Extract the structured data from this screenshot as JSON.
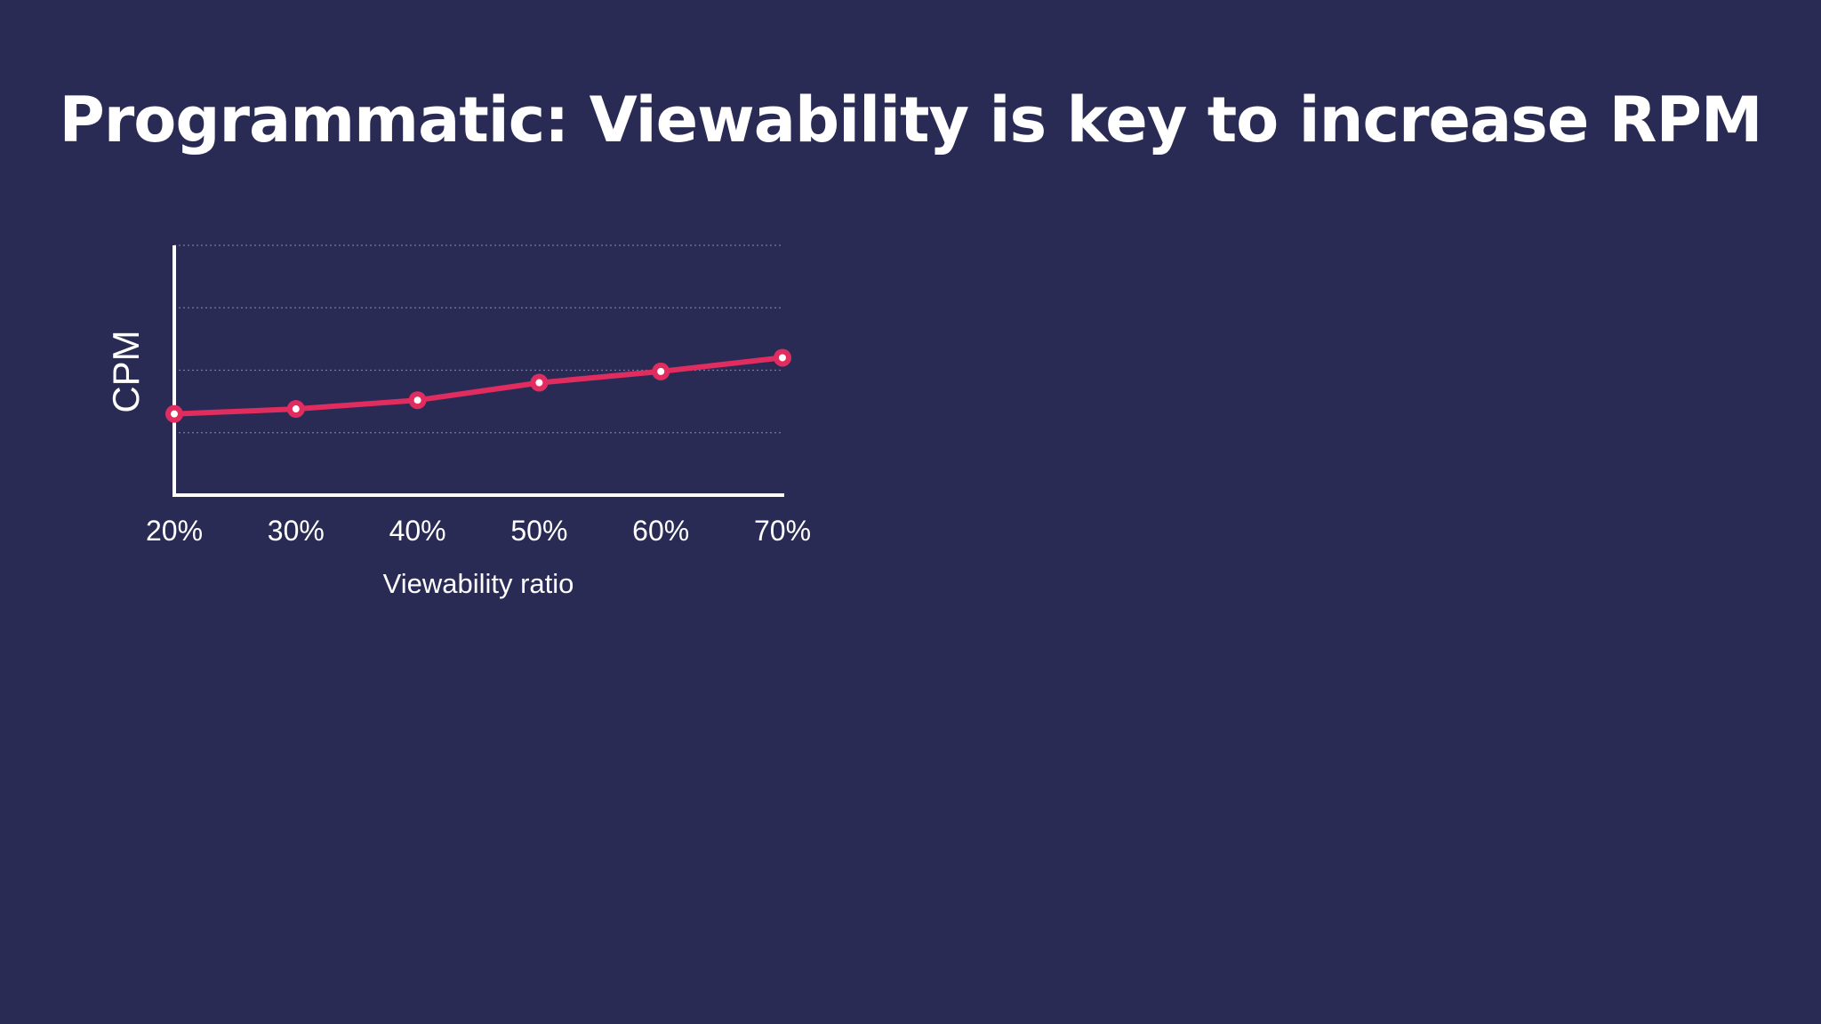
{
  "title": "Programmatic: Viewability is key to increase RPM",
  "colors": {
    "background": "#292b55",
    "line": "#e02c5e",
    "axis": "#ffffff",
    "grid": "#8a8db0",
    "text": "#ffffff"
  },
  "chart_data": {
    "type": "line",
    "categories": [
      "20%",
      "30%",
      "40%",
      "50%",
      "60%",
      "70%"
    ],
    "series": [
      {
        "values": [
          1.3,
          1.38,
          1.52,
          1.8,
          1.98,
          2.2
        ]
      }
    ],
    "xlabel": "Viewability ratio",
    "ylabel": "CPM",
    "ylim": [
      0,
      4
    ],
    "y_ticks_labeled": false,
    "grid": true,
    "legend": "none",
    "markers": "circle"
  }
}
